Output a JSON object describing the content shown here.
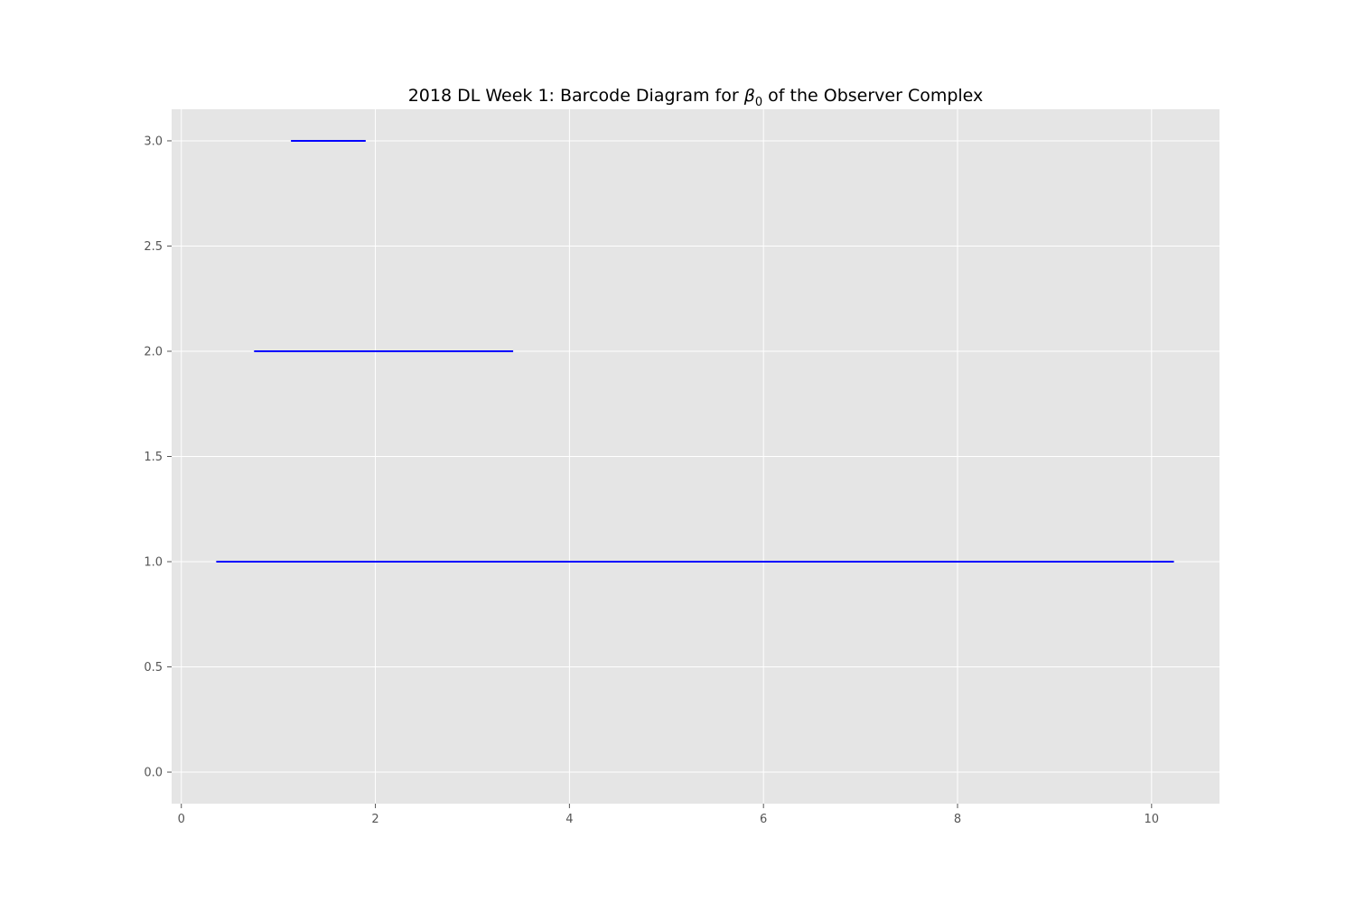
{
  "chart_data": {
    "type": "barcode",
    "title": {
      "prefix": "2018 DL Week 1: Barcode Diagram for ",
      "symbol": "β",
      "subscript": "0",
      "suffix": " of the Observer Complex"
    },
    "xlabel": "",
    "ylabel": "",
    "xlim": [
      -0.1,
      10.7
    ],
    "ylim": [
      -0.15,
      3.15
    ],
    "xticks": [
      0,
      2,
      4,
      6,
      8,
      10
    ],
    "xtick_labels": [
      "0",
      "2",
      "4",
      "6",
      "8",
      "10"
    ],
    "yticks": [
      0.0,
      0.5,
      1.0,
      1.5,
      2.0,
      2.5,
      3.0
    ],
    "ytick_labels": [
      "0.0",
      "0.5",
      "1.0",
      "1.5",
      "2.0",
      "2.5",
      "3.0"
    ],
    "grid": true,
    "bars": [
      {
        "y": 1,
        "birth": 0.36,
        "death": 10.23
      },
      {
        "y": 2,
        "birth": 0.75,
        "death": 3.42
      },
      {
        "y": 3,
        "birth": 1.13,
        "death": 1.9
      }
    ],
    "colors": {
      "bar": "#0000ff",
      "background": "#e5e5e5",
      "grid": "#ffffff",
      "tick": "#555555"
    }
  }
}
